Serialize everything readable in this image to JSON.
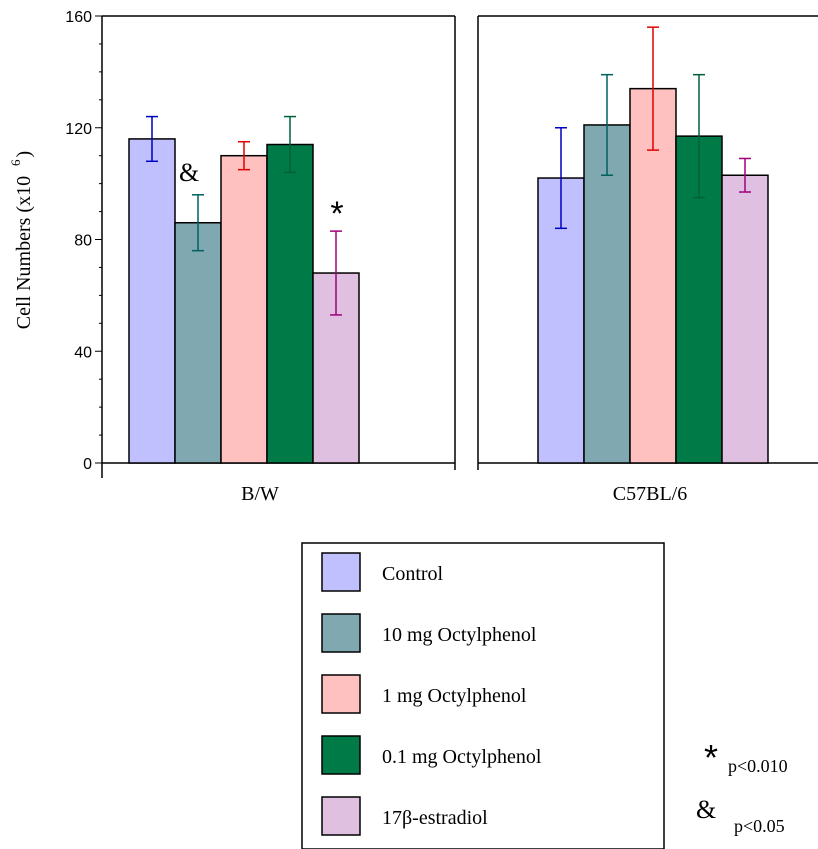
{
  "chart_data": {
    "type": "bar",
    "ylabel": "Cell Numbers (x10",
    "ylabel_exponent": "6",
    "ylabel_close": ")",
    "ylim": [
      0,
      160
    ],
    "yticks": [
      "0",
      "40",
      "80",
      "120",
      "160"
    ],
    "series": [
      {
        "name": "Control",
        "color": "#c0c0ff"
      },
      {
        "name": "10 mg Octylphenol",
        "color": "#80a8b0"
      },
      {
        "name": "1 mg Octylphenol",
        "color": "#ffc0c0"
      },
      {
        "name": "0.1 mg Octylphenol",
        "color": "#007b48"
      },
      {
        "name": "17β-estradiol",
        "color": "#e0c0e0"
      }
    ],
    "error_colors": [
      "#0000c0",
      "#006060",
      "#e00000",
      "#006038",
      "#a0007a"
    ],
    "panels": [
      {
        "label": "B/W",
        "values": [
          116,
          86,
          110,
          114,
          68
        ],
        "errors": [
          8,
          10,
          5,
          10,
          15
        ],
        "marks": [
          "",
          "&",
          "",
          "",
          "*"
        ]
      },
      {
        "label": "C57BL/6",
        "values": [
          102,
          121,
          134,
          117,
          103
        ],
        "errors": [
          18,
          18,
          22,
          22,
          6
        ],
        "marks": [
          "",
          "",
          "",
          "",
          ""
        ]
      }
    ],
    "legend_position": "bottom-center"
  },
  "significance": [
    {
      "symbol": "*",
      "text": "p<0.010"
    },
    {
      "symbol": "&",
      "text": "p<0.05"
    }
  ]
}
